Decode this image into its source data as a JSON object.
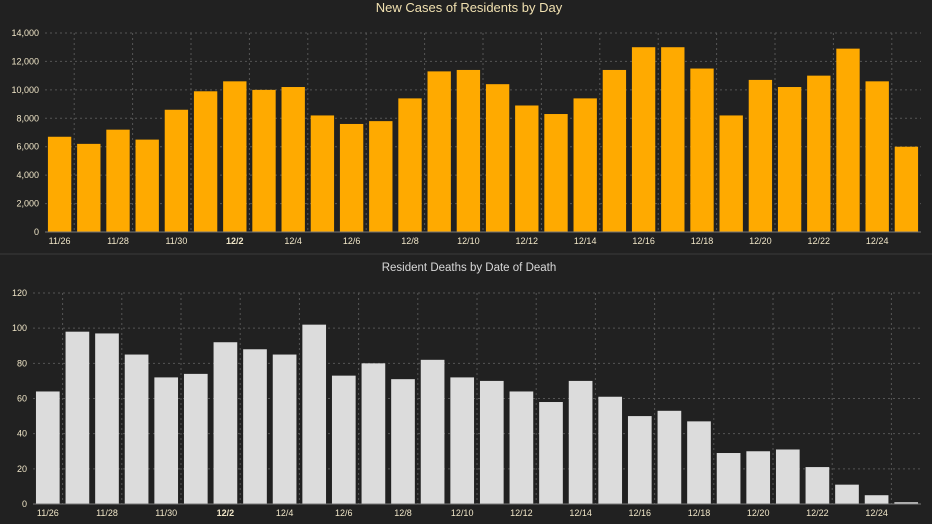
{
  "colors": {
    "background": "#212121",
    "cases_bar": "#FFAA00",
    "deaths_bar": "#DCDCDC",
    "title_cases": "#F0E0B0",
    "title_deaths": "#D8D8D8",
    "tick_label": "#F0E6C8",
    "grid": "#555555"
  },
  "chart_data": [
    {
      "type": "bar",
      "title": "New Cases of Residents by Day",
      "categories": [
        "11/26",
        "11/27",
        "11/28",
        "11/29",
        "11/30",
        "12/1",
        "12/2",
        "12/3",
        "12/4",
        "12/5",
        "12/6",
        "12/7",
        "12/8",
        "12/9",
        "12/10",
        "12/11",
        "12/12",
        "12/13",
        "12/14",
        "12/15",
        "12/16",
        "12/17",
        "12/18",
        "12/19",
        "12/20",
        "12/21",
        "12/22",
        "12/23",
        "12/24",
        "12/25"
      ],
      "values": [
        6700,
        6200,
        7200,
        6500,
        8600,
        9900,
        10600,
        10000,
        10200,
        8200,
        7600,
        7800,
        9400,
        11300,
        11400,
        10400,
        8900,
        8300,
        9400,
        11400,
        13000,
        13000,
        11500,
        8200,
        10700,
        10200,
        11000,
        12900,
        10600,
        6000
      ],
      "x_tick_labels": [
        "11/26",
        "11/28",
        "11/30",
        "12/2",
        "12/4",
        "12/6",
        "12/8",
        "12/10",
        "12/12",
        "12/14",
        "12/16",
        "12/18",
        "12/20",
        "12/22",
        "12/24"
      ],
      "y_ticks": [
        "0",
        "2,000",
        "4,000",
        "6,000",
        "8,000",
        "10,000",
        "12,000",
        "14,000"
      ],
      "ylim": [
        0,
        14000
      ],
      "grid": true,
      "xlabel": "",
      "ylabel": ""
    },
    {
      "type": "bar",
      "title": "Resident Deaths by Date of Death",
      "categories": [
        "11/26",
        "11/27",
        "11/28",
        "11/29",
        "11/30",
        "12/1",
        "12/2",
        "12/3",
        "12/4",
        "12/5",
        "12/6",
        "12/7",
        "12/8",
        "12/9",
        "12/10",
        "12/11",
        "12/12",
        "12/13",
        "12/14",
        "12/15",
        "12/16",
        "12/17",
        "12/18",
        "12/19",
        "12/20",
        "12/21",
        "12/22",
        "12/23",
        "12/24",
        "12/25"
      ],
      "values": [
        64,
        98,
        97,
        85,
        72,
        74,
        92,
        88,
        85,
        102,
        73,
        80,
        71,
        82,
        72,
        70,
        64,
        58,
        70,
        61,
        50,
        53,
        47,
        29,
        30,
        31,
        21,
        11,
        5,
        1
      ],
      "x_tick_labels": [
        "11/26",
        "11/28",
        "11/30",
        "12/2",
        "12/4",
        "12/6",
        "12/8",
        "12/10",
        "12/12",
        "12/14",
        "12/16",
        "12/18",
        "12/20",
        "12/22",
        "12/24"
      ],
      "y_ticks": [
        "0",
        "20",
        "40",
        "60",
        "80",
        "100",
        "120"
      ],
      "ylim": [
        0,
        120
      ],
      "grid": true,
      "xlabel": "",
      "ylabel": ""
    }
  ]
}
